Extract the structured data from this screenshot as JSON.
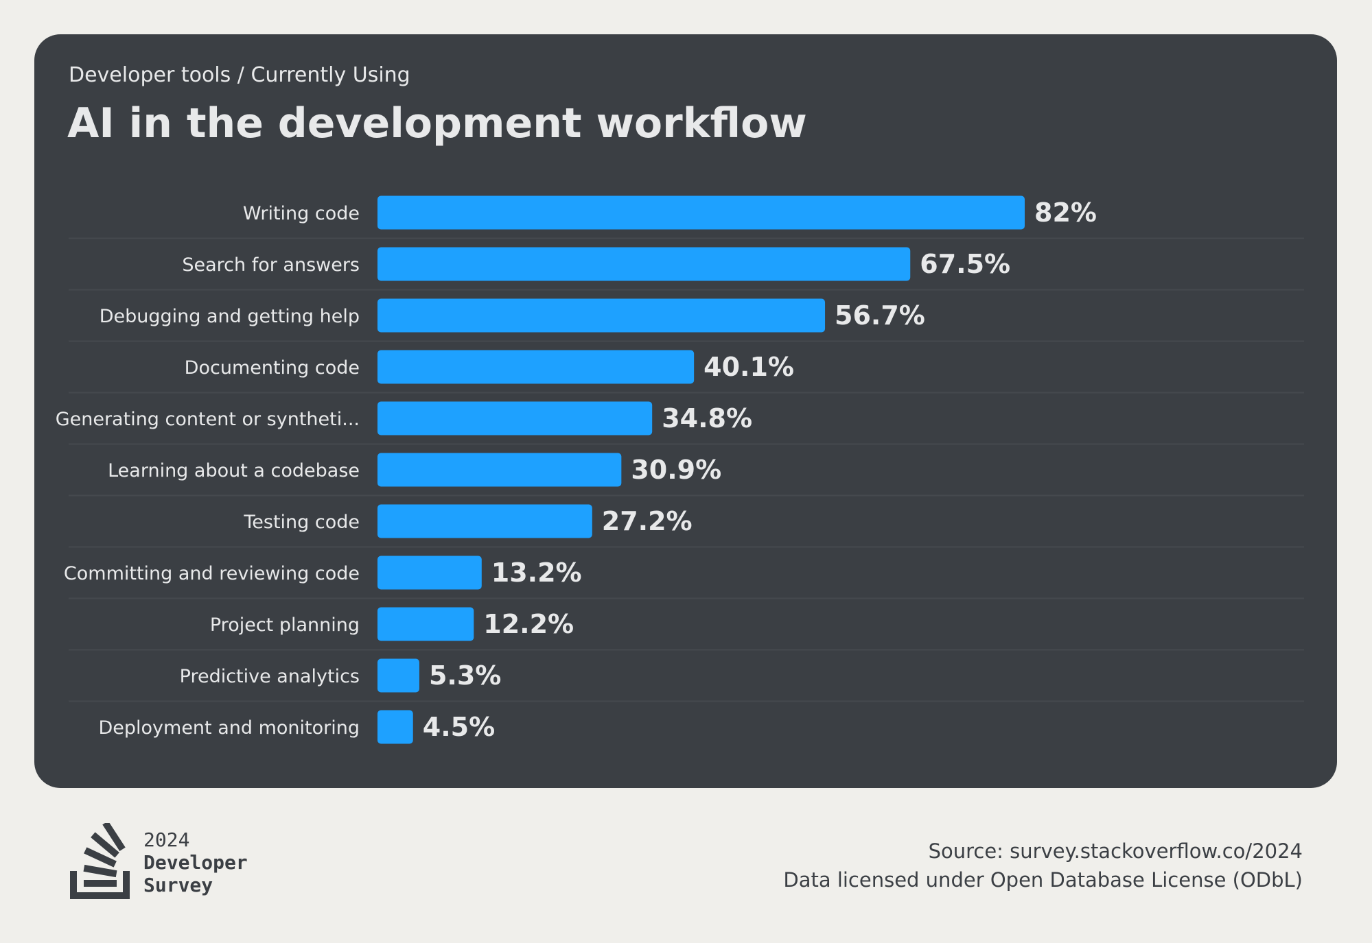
{
  "header": {
    "breadcrumb": "Developer tools / Currently Using",
    "title": "AI in the development workflow"
  },
  "chart_data": {
    "type": "bar",
    "orientation": "horizontal",
    "title": "AI in the development workflow",
    "categories": [
      "Writing code",
      "Search for answers",
      "Debugging and getting help",
      "Documenting code",
      "Generating content or syntheti...",
      "Learning about a codebase",
      "Testing code",
      "Committing and reviewing code",
      "Project planning",
      "Predictive analytics",
      "Deployment and monitoring"
    ],
    "values": [
      82,
      67.5,
      56.7,
      40.1,
      34.8,
      30.9,
      27.2,
      13.2,
      12.2,
      5.3,
      4.5
    ],
    "value_labels": [
      "82%",
      "67.5%",
      "56.7%",
      "40.1%",
      "34.8%",
      "30.9%",
      "27.2%",
      "13.2%",
      "12.2%",
      "5.3%",
      "4.5%"
    ],
    "unit": "%",
    "bar_color": "#1ea1ff",
    "background_color": "#3b3f44",
    "grid": false
  },
  "footer": {
    "logo": {
      "year": "2024",
      "line1": "Developer",
      "line2": "Survey"
    },
    "source": "Source: survey.stackoverflow.co/2024",
    "license": "Data licensed under Open Database License (ODbL)"
  }
}
